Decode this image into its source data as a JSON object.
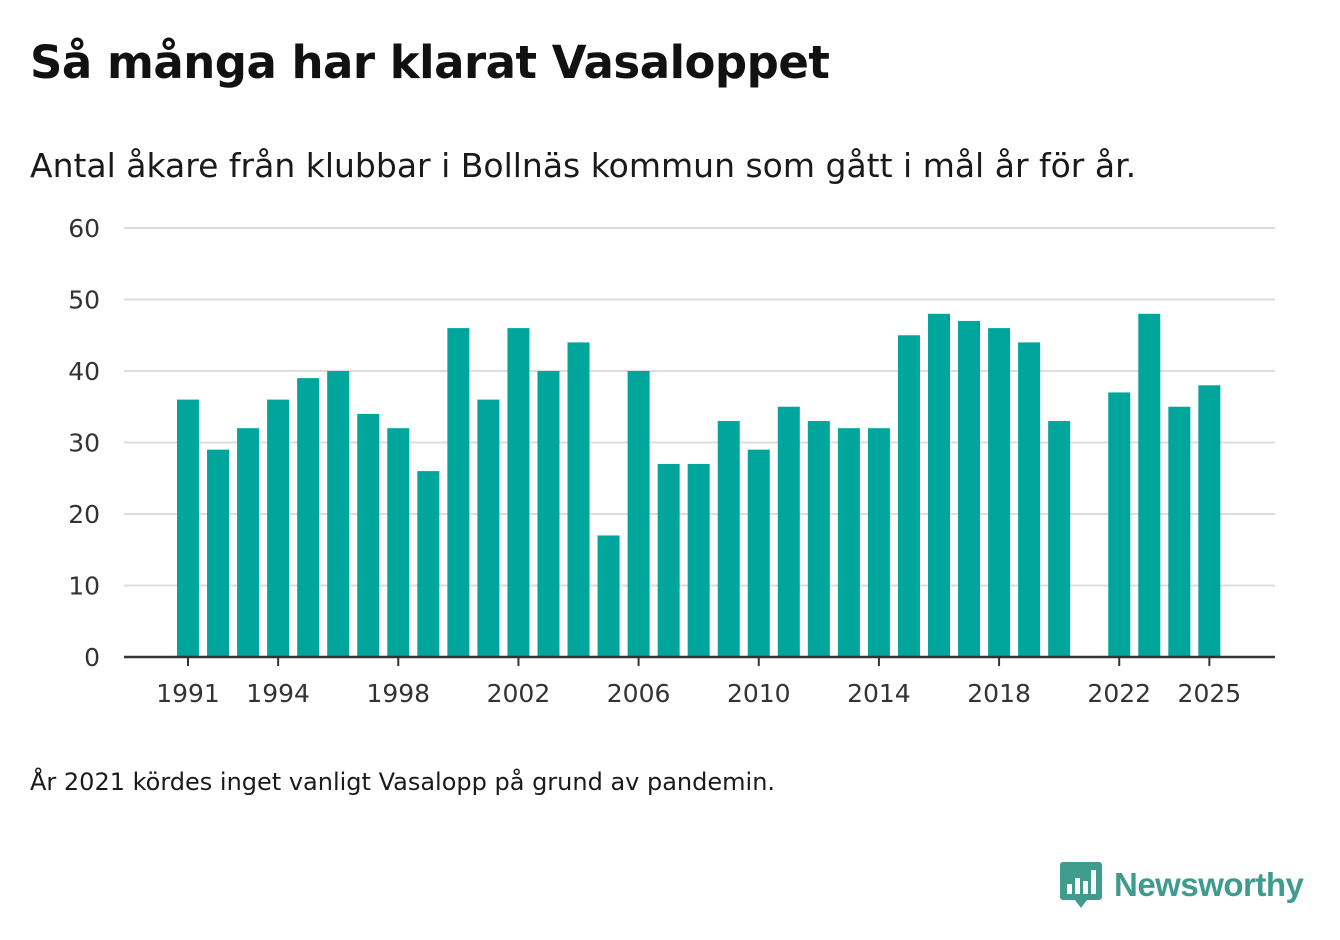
{
  "title": "Så många har klarat Vasaloppet",
  "subtitle": "Antal åkare från klubbar i Bollnäs kommun som gått i mål år för år.",
  "footnote": "År 2021 kördes inget vanligt Vasalopp på grund av pandemin.",
  "brand": {
    "name": "Newsworthy",
    "icon": "newsworthy-logo-icon",
    "color": "#3f9b8e"
  },
  "colors": {
    "bar": "#00a59c",
    "grid": "#dddddd",
    "axis": "#333333"
  },
  "chart_data": {
    "type": "bar",
    "title": "Så många har klarat Vasaloppet",
    "xlabel": "",
    "ylabel": "",
    "ylim": [
      0,
      60
    ],
    "yticks": [
      0,
      10,
      20,
      30,
      40,
      50,
      60
    ],
    "xtick_labels": [
      "1991",
      "1994",
      "1998",
      "2002",
      "2006",
      "2010",
      "2014",
      "2018",
      "2022",
      "2025"
    ],
    "grid": true,
    "categories": [
      1991,
      1992,
      1993,
      1994,
      1995,
      1996,
      1997,
      1998,
      1999,
      2000,
      2001,
      2002,
      2003,
      2004,
      2005,
      2006,
      2007,
      2008,
      2009,
      2010,
      2011,
      2012,
      2013,
      2014,
      2015,
      2016,
      2017,
      2018,
      2019,
      2020,
      2021,
      2022,
      2023,
      2024,
      2025
    ],
    "values": [
      36,
      29,
      32,
      36,
      39,
      40,
      34,
      32,
      26,
      46,
      36,
      46,
      40,
      44,
      17,
      40,
      27,
      27,
      33,
      29,
      35,
      33,
      32,
      32,
      45,
      48,
      47,
      46,
      44,
      33,
      null,
      37,
      48,
      35,
      38
    ]
  }
}
